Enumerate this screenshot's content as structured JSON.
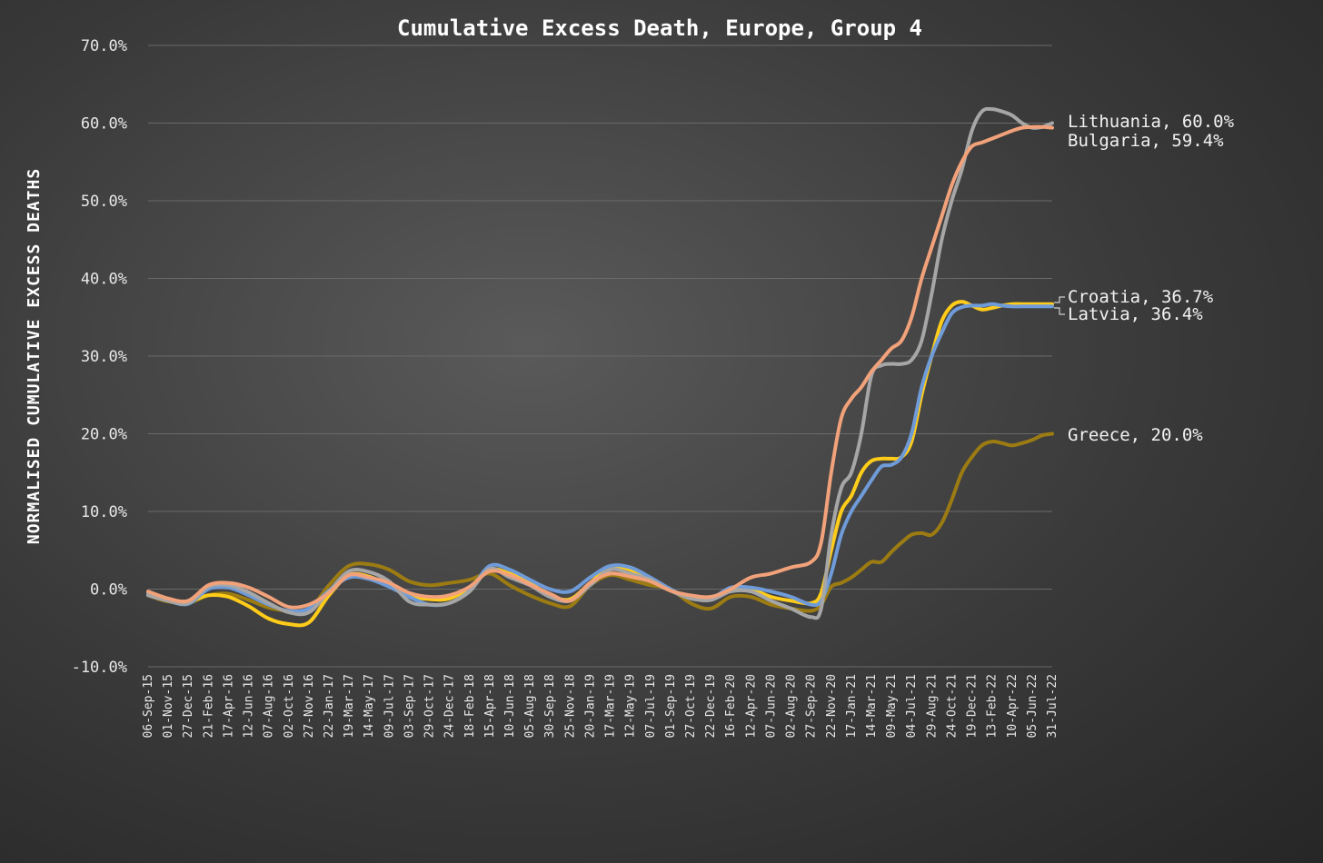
{
  "chart_data": {
    "type": "line",
    "title": "Cumulative Excess Death, Europe, Group 4",
    "ylabel": "NORMALISED CUMULATIVE EXCESS DEATHS",
    "xlabel": "",
    "ylim": [
      -10,
      70
    ],
    "yticks": [
      -10,
      0,
      10,
      20,
      30,
      40,
      50,
      60,
      70
    ],
    "ytick_labels": [
      "-10.0%",
      "0.0%",
      "10.0%",
      "20.0%",
      "30.0%",
      "40.0%",
      "50.0%",
      "60.0%",
      "70.0%"
    ],
    "x_labels": [
      "06-Sep-15",
      "01-Nov-15",
      "27-Dec-15",
      "21-Feb-16",
      "17-Apr-16",
      "12-Jun-16",
      "07-Aug-16",
      "02-Oct-16",
      "27-Nov-16",
      "22-Jan-17",
      "19-Mar-17",
      "14-May-17",
      "09-Jul-17",
      "03-Sep-17",
      "29-Oct-17",
      "24-Dec-17",
      "18-Feb-18",
      "15-Apr-18",
      "10-Jun-18",
      "05-Aug-18",
      "30-Sep-18",
      "25-Nov-18",
      "20-Jan-19",
      "17-Mar-19",
      "12-May-19",
      "07-Jul-19",
      "01-Sep-19",
      "27-Oct-19",
      "22-Dec-19",
      "16-Feb-20",
      "12-Apr-20",
      "07-Jun-20",
      "02-Aug-20",
      "27-Sep-20",
      "22-Nov-20",
      "17-Jan-21",
      "14-Mar-21",
      "09-May-21",
      "04-Jul-21",
      "29-Aug-21",
      "24-Oct-21",
      "19-Dec-21",
      "13-Feb-22",
      "10-Apr-22",
      "05-Jun-22",
      "31-Jul-22"
    ],
    "grid": true,
    "legend": "end-of-line labels",
    "series": [
      {
        "name": "Lithuania",
        "end_label": "Lithuania, 60.0%",
        "color": "#a6a6a6",
        "x": [
          0,
          1,
          2,
          3,
          4,
          5,
          6,
          7,
          8,
          9,
          10,
          11,
          12,
          13,
          14,
          15,
          16,
          17,
          18,
          19,
          20,
          21,
          22,
          23,
          24,
          25,
          26,
          27,
          28,
          29,
          30,
          31,
          32,
          33,
          33.5,
          34,
          34.5,
          35,
          35.5,
          36,
          36.5,
          37,
          37.5,
          38,
          38.5,
          39,
          39.5,
          40,
          40.5,
          41,
          41.5,
          42,
          42.5,
          43,
          43.5,
          44,
          44.5,
          45
        ],
        "y": [
          -0.8,
          -1.5,
          -1.8,
          0.3,
          0.5,
          -0.4,
          -1.8,
          -3.0,
          -3.0,
          -0.3,
          2.3,
          2.2,
          1.0,
          -1.6,
          -2.0,
          -1.8,
          -0.3,
          2.6,
          1.5,
          0.5,
          -1.0,
          -1.5,
          0.5,
          2.5,
          2.0,
          1.2,
          -0.2,
          -1.2,
          -1.4,
          -0.3,
          -0.3,
          -1.5,
          -2.5,
          -3.6,
          -2.5,
          7.0,
          13.0,
          15.0,
          20.0,
          27.5,
          28.8,
          29.0,
          29.0,
          29.5,
          32.0,
          38.0,
          45.0,
          50.0,
          54.0,
          59.0,
          61.5,
          61.8,
          61.5,
          61.0,
          60.0,
          59.4,
          59.5,
          60.0
        ]
      },
      {
        "name": "Bulgaria",
        "end_label": "Bulgaria, 59.4%",
        "color": "#f2a27a",
        "x": [
          0,
          1,
          2,
          3,
          4,
          5,
          6,
          7,
          8,
          9,
          10,
          11,
          12,
          13,
          14,
          15,
          16,
          17,
          18,
          19,
          20,
          21,
          22,
          23,
          24,
          25,
          26,
          27,
          28,
          29,
          30,
          31,
          32,
          33,
          33.5,
          34,
          34.5,
          35,
          35.5,
          36,
          36.5,
          37,
          37.5,
          38,
          38.5,
          39,
          39.5,
          40,
          40.5,
          41,
          41.5,
          42,
          42.5,
          43,
          43.5,
          44,
          44.5,
          45
        ],
        "y": [
          -0.3,
          -1.2,
          -1.5,
          0.5,
          0.8,
          0.2,
          -1.0,
          -2.3,
          -2.0,
          -0.5,
          1.8,
          1.5,
          0.8,
          -0.5,
          -1.0,
          -0.8,
          0.3,
          2.3,
          1.8,
          0.6,
          -0.6,
          -1.5,
          0.8,
          2.0,
          1.6,
          1.0,
          -0.2,
          -0.8,
          -1.0,
          0.0,
          1.5,
          2.0,
          2.8,
          3.5,
          6.0,
          15.0,
          22.0,
          24.5,
          26.0,
          28.0,
          29.5,
          31.0,
          32.0,
          35.0,
          40.0,
          44.0,
          48.0,
          52.0,
          55.0,
          57.0,
          57.5,
          58.0,
          58.5,
          59.0,
          59.4,
          59.5,
          59.5,
          59.4
        ]
      },
      {
        "name": "Croatia",
        "end_label": "Croatia, 36.7%",
        "color": "#ffcc1a",
        "x": [
          0,
          1,
          2,
          3,
          4,
          5,
          6,
          7,
          8,
          9,
          10,
          11,
          12,
          13,
          14,
          15,
          16,
          17,
          18,
          19,
          20,
          21,
          22,
          23,
          24,
          25,
          26,
          27,
          28,
          29,
          30,
          31,
          32,
          33,
          33.5,
          34,
          34.5,
          35,
          35.5,
          36,
          36.5,
          37,
          37.5,
          38,
          38.5,
          39,
          39.5,
          40,
          40.5,
          41,
          41.5,
          42,
          42.5,
          43,
          43.5,
          44,
          44.5,
          45
        ],
        "y": [
          -0.5,
          -1.3,
          -1.6,
          -0.8,
          -1.0,
          -2.2,
          -3.8,
          -4.5,
          -4.3,
          -0.8,
          1.8,
          1.6,
          0.5,
          -0.8,
          -1.3,
          -1.2,
          0.2,
          2.5,
          2.0,
          0.8,
          -0.8,
          -1.3,
          0.8,
          2.8,
          2.5,
          1.2,
          -0.2,
          -1.0,
          -1.3,
          0.0,
          0.0,
          -1.0,
          -1.5,
          -1.8,
          -0.5,
          5.0,
          10.0,
          12.0,
          15.0,
          16.5,
          16.8,
          16.8,
          17.0,
          19.0,
          25.0,
          30.0,
          34.5,
          36.5,
          37.0,
          36.5,
          36.0,
          36.2,
          36.5,
          36.7,
          36.7,
          36.7,
          36.7,
          36.7
        ]
      },
      {
        "name": "Latvia",
        "end_label": "Latvia, 36.4%",
        "color": "#6f9bd8",
        "x": [
          0,
          1,
          2,
          3,
          4,
          5,
          6,
          7,
          8,
          9,
          10,
          11,
          12,
          13,
          14,
          15,
          16,
          17,
          18,
          19,
          20,
          21,
          22,
          23,
          24,
          25,
          26,
          27,
          28,
          29,
          30,
          31,
          32,
          33,
          33.5,
          34,
          34.5,
          35,
          35.5,
          36,
          36.5,
          37,
          37.5,
          38,
          38.5,
          39,
          39.5,
          40,
          40.5,
          41,
          41.5,
          42,
          42.5,
          43,
          43.5,
          44,
          44.5,
          45
        ],
        "y": [
          -0.6,
          -1.5,
          -1.9,
          0.0,
          0.2,
          -0.8,
          -2.0,
          -2.8,
          -2.5,
          -0.2,
          1.5,
          1.3,
          0.3,
          -1.0,
          -2.0,
          -1.8,
          -0.2,
          3.0,
          2.5,
          1.2,
          0.0,
          -0.3,
          1.5,
          3.0,
          2.8,
          1.5,
          0.0,
          -1.2,
          -1.2,
          0.2,
          0.2,
          -0.3,
          -1.0,
          -2.0,
          -1.5,
          2.0,
          7.0,
          10.0,
          12.0,
          14.0,
          15.8,
          16.0,
          17.0,
          20.0,
          26.0,
          30.0,
          33.0,
          35.5,
          36.3,
          36.5,
          36.5,
          36.7,
          36.5,
          36.4,
          36.4,
          36.4,
          36.4,
          36.4
        ]
      },
      {
        "name": "Greece",
        "end_label": "Greece, 20.0%",
        "color": "#9c7c12",
        "x": [
          0,
          1,
          2,
          3,
          4,
          5,
          6,
          7,
          8,
          9,
          10,
          11,
          12,
          13,
          14,
          15,
          16,
          17,
          18,
          19,
          20,
          21,
          22,
          23,
          24,
          25,
          26,
          27,
          28,
          29,
          30,
          31,
          32,
          33,
          33.5,
          34,
          34.5,
          35,
          35.5,
          36,
          36.5,
          37,
          37.5,
          38,
          38.5,
          39,
          39.5,
          40,
          40.5,
          41,
          41.5,
          42,
          42.5,
          43,
          43.5,
          44,
          44.5,
          45
        ],
        "y": [
          -0.8,
          -1.6,
          -1.8,
          -0.8,
          -0.6,
          -1.4,
          -2.4,
          -2.8,
          -2.7,
          0.5,
          3.0,
          3.2,
          2.5,
          1.0,
          0.5,
          0.8,
          1.2,
          2.0,
          0.5,
          -0.8,
          -1.8,
          -2.2,
          0.5,
          1.8,
          1.2,
          0.5,
          0.0,
          -1.8,
          -2.5,
          -1.0,
          -1.0,
          -2.0,
          -2.5,
          -2.8,
          -2.0,
          0.3,
          0.8,
          1.5,
          2.5,
          3.5,
          3.5,
          4.8,
          6.0,
          7.0,
          7.2,
          7.0,
          8.5,
          11.5,
          15.0,
          17.0,
          18.5,
          19.0,
          18.8,
          18.5,
          18.8,
          19.2,
          19.8,
          20.0
        ]
      }
    ]
  }
}
